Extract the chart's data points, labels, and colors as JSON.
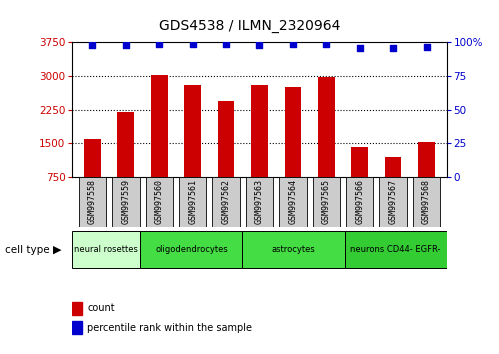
{
  "title": "GDS4538 / ILMN_2320964",
  "samples": [
    "GSM997558",
    "GSM997559",
    "GSM997560",
    "GSM997561",
    "GSM997562",
    "GSM997563",
    "GSM997564",
    "GSM997565",
    "GSM997566",
    "GSM997567",
    "GSM997568"
  ],
  "counts": [
    1600,
    2210,
    3020,
    2800,
    2450,
    2800,
    2750,
    2980,
    1430,
    1200,
    1520
  ],
  "percentiles": [
    98,
    98,
    99,
    99,
    99,
    98,
    99,
    99,
    96,
    96,
    97
  ],
  "ylim_left": [
    750,
    3750
  ],
  "ylim_right": [
    0,
    100
  ],
  "yticks_left": [
    750,
    1500,
    2250,
    3000,
    3750
  ],
  "yticks_right": [
    0,
    25,
    50,
    75,
    100
  ],
  "bar_color": "#cc0000",
  "dot_color": "#0000cc",
  "cell_types": [
    {
      "label": "neural rosettes",
      "start": 0,
      "end": 2,
      "color": "#ccffcc"
    },
    {
      "label": "oligodendrocytes",
      "start": 2,
      "end": 5,
      "color": "#44dd44"
    },
    {
      "label": "astrocytes",
      "start": 5,
      "end": 8,
      "color": "#44dd44"
    },
    {
      "label": "neurons CD44- EGFR-",
      "start": 8,
      "end": 11,
      "color": "#33cc33"
    }
  ],
  "legend_count_label": "count",
  "legend_pct_label": "percentile rank within the sample",
  "cell_type_label": "cell type",
  "background_color": "#ffffff",
  "tick_color_left": "#cc0000",
  "tick_color_right": "#0000cc",
  "sample_bg_color": "#cccccc",
  "bar_width": 0.5,
  "dot_size": 22,
  "title_fontsize": 10,
  "tick_fontsize": 7.5,
  "sample_fontsize": 6,
  "cell_type_fontsize": 6,
  "legend_fontsize": 7
}
